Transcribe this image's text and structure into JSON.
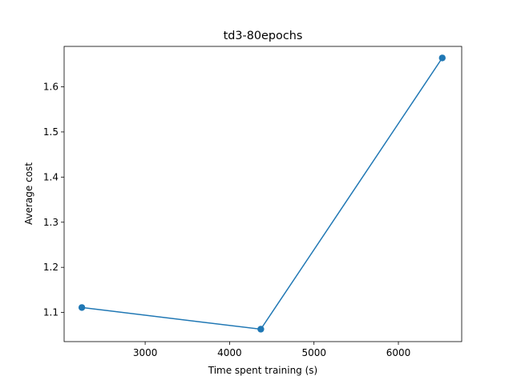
{
  "chart_data": {
    "type": "line",
    "title": "td3-80epochs",
    "xlabel": "Time spent training (s)",
    "ylabel": "Average cost",
    "xlim": [
      2040,
      6750
    ],
    "ylim": [
      1.0355,
      1.6895
    ],
    "xticks": [
      3000,
      4000,
      5000,
      6000
    ],
    "yticks": [
      1.1,
      1.2,
      1.3,
      1.4,
      1.5,
      1.6
    ],
    "grid": false,
    "series": [
      {
        "x": [
          2250,
          4370,
          6520
        ],
        "y": [
          1.111,
          1.063,
          1.664
        ],
        "color": "#1f77b4",
        "marker": "circle"
      }
    ]
  }
}
